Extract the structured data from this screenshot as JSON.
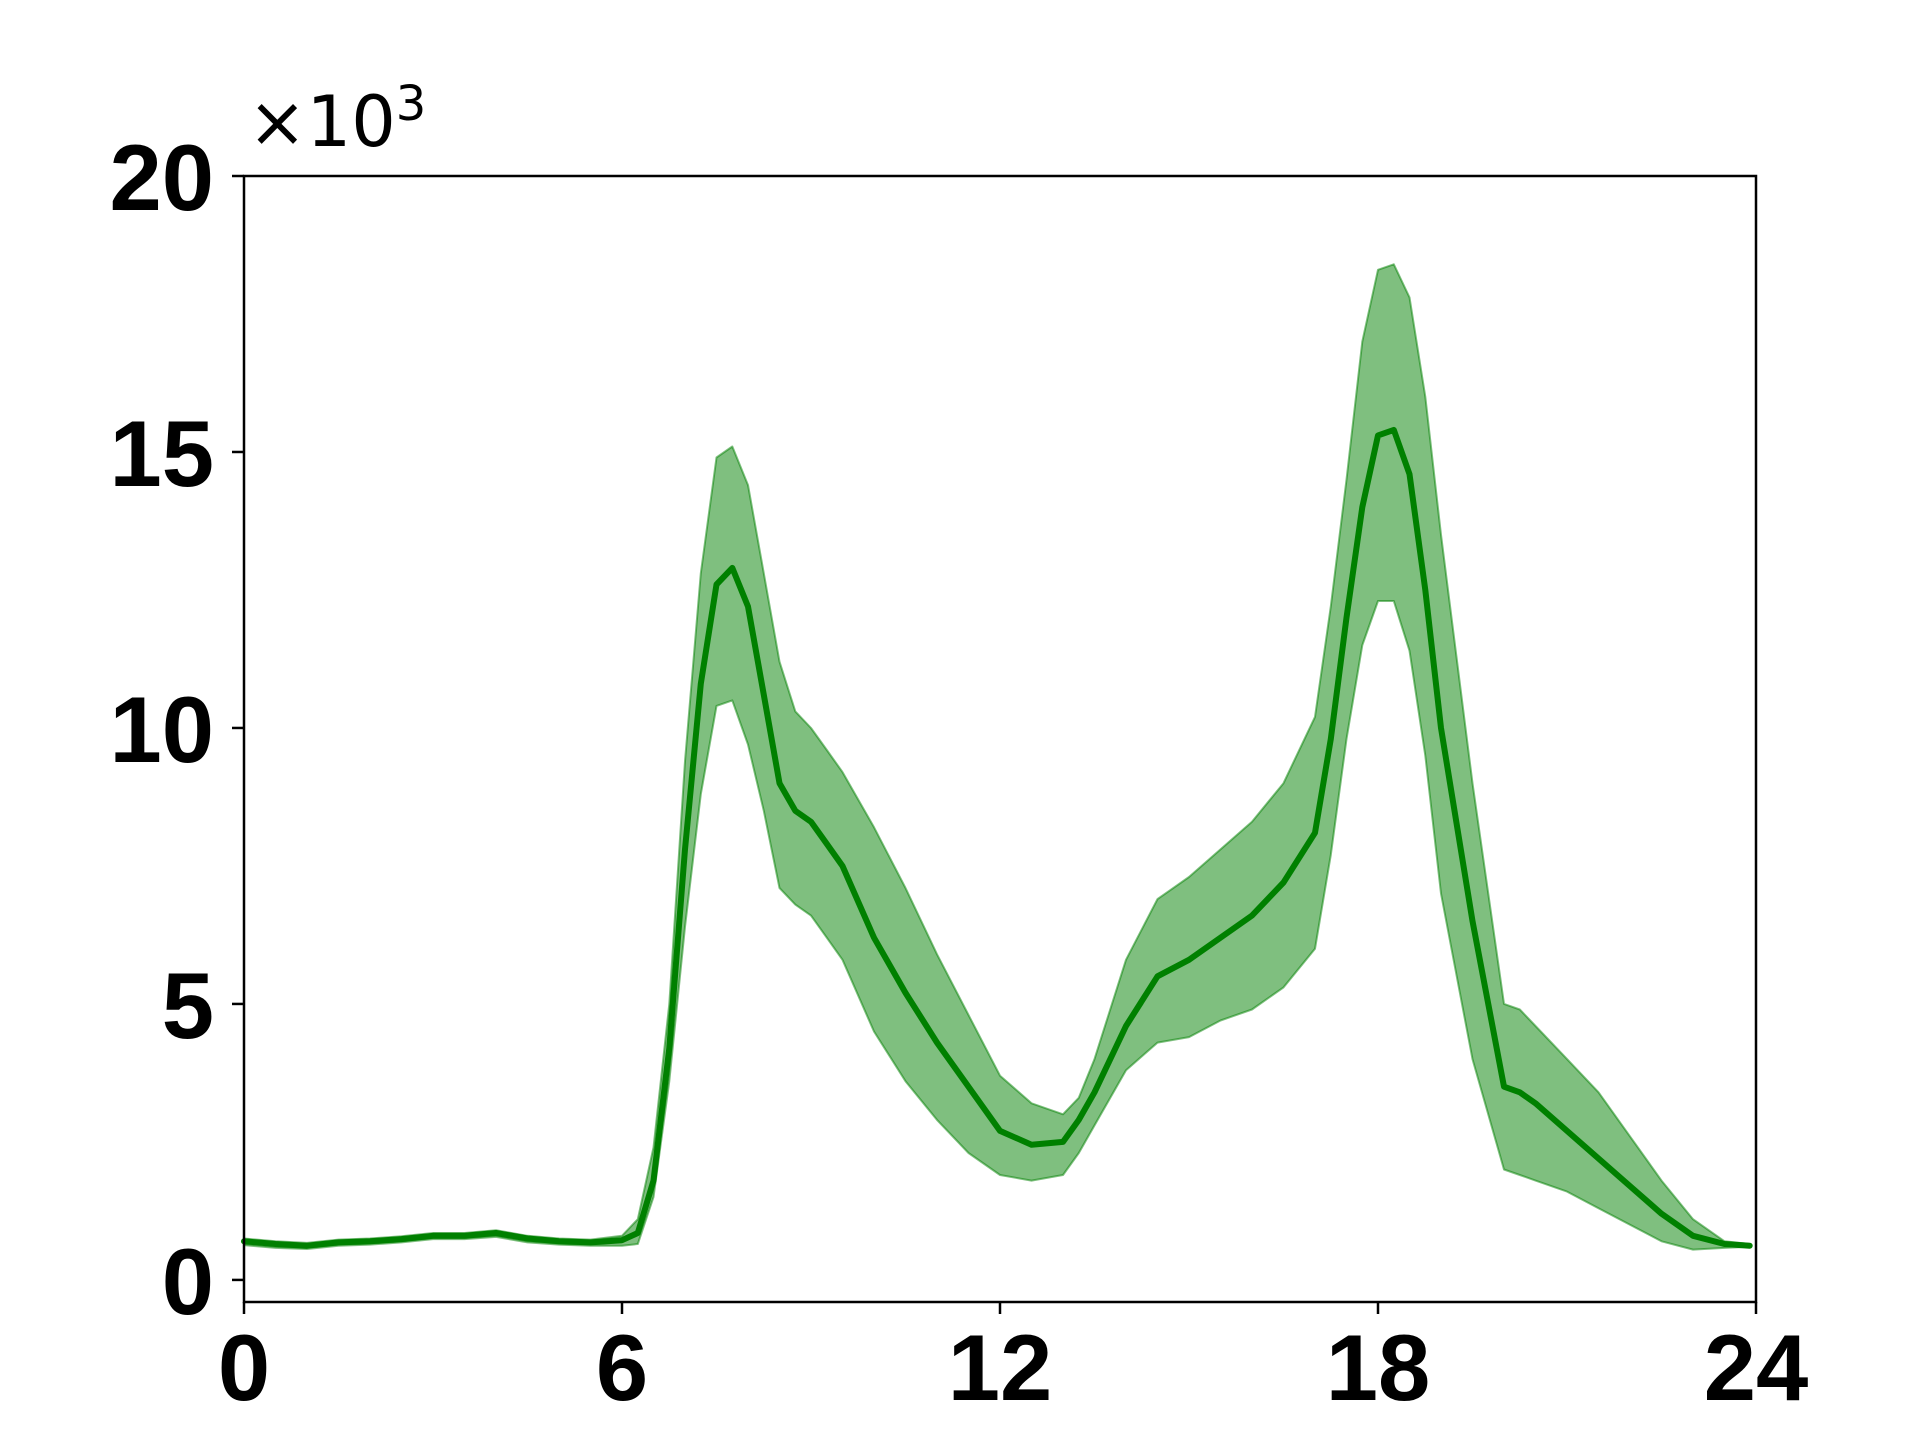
{
  "chart_data": {
    "type": "line",
    "title": "",
    "xlabel": "",
    "ylabel": "",
    "y_multiplier_label": "×10",
    "y_multiplier_exponent": "3",
    "xlim": [
      0,
      24
    ],
    "ylim": [
      -0.4,
      20
    ],
    "x_ticks": [
      0,
      6,
      12,
      18,
      24
    ],
    "x_tick_labels": [
      "0",
      "6",
      "12",
      "18",
      "24"
    ],
    "y_ticks": [
      0,
      5,
      10,
      15,
      20
    ],
    "y_tick_labels": [
      "0",
      "5",
      "10",
      "15",
      "20"
    ],
    "grid": false,
    "legend": "none",
    "colors": {
      "line": "#008000",
      "band": "#008000"
    },
    "series": [
      {
        "x": [
          0,
          0.5,
          1,
          1.5,
          2,
          2.5,
          3,
          3.5,
          4,
          4.5,
          5,
          5.5,
          6,
          6.25,
          6.5,
          6.75,
          7,
          7.25,
          7.5,
          7.75,
          8,
          8.25,
          8.5,
          8.75,
          9,
          9.25,
          9.5,
          10,
          10.5,
          11,
          11.5,
          12,
          12.5,
          13,
          13.25,
          13.5,
          14,
          14.5,
          15,
          15.5,
          16,
          16.5,
          17,
          17.25,
          17.5,
          17.75,
          18,
          18.25,
          18.5,
          18.75,
          19,
          19.5,
          20,
          20.25,
          20.5,
          21,
          21.5,
          22,
          22.5,
          23,
          23.5,
          23.9
        ],
        "mean": [
          0.7,
          0.65,
          0.62,
          0.68,
          0.7,
          0.74,
          0.8,
          0.8,
          0.85,
          0.75,
          0.7,
          0.68,
          0.72,
          0.85,
          1.8,
          4.2,
          7.8,
          10.8,
          12.6,
          12.9,
          12.2,
          10.6,
          9.0,
          8.5,
          8.3,
          7.9,
          7.5,
          6.2,
          5.2,
          4.3,
          3.5,
          2.7,
          2.45,
          2.5,
          2.9,
          3.4,
          4.6,
          5.5,
          5.8,
          6.2,
          6.6,
          7.2,
          8.1,
          9.8,
          12.0,
          14.0,
          15.3,
          15.4,
          14.6,
          12.5,
          10.0,
          6.5,
          3.5,
          3.4,
          3.2,
          2.7,
          2.2,
          1.7,
          1.2,
          0.8,
          0.65,
          0.62
        ],
        "upper": [
          0.75,
          0.7,
          0.67,
          0.73,
          0.75,
          0.79,
          0.85,
          0.85,
          0.9,
          0.8,
          0.75,
          0.73,
          0.8,
          1.1,
          2.4,
          5.0,
          9.4,
          12.8,
          14.9,
          15.1,
          14.4,
          12.8,
          11.2,
          10.3,
          10.0,
          9.6,
          9.2,
          8.2,
          7.1,
          5.9,
          4.8,
          3.7,
          3.2,
          3.0,
          3.3,
          4.0,
          5.8,
          6.9,
          7.3,
          7.8,
          8.3,
          9.0,
          10.2,
          12.2,
          14.5,
          17.0,
          18.3,
          18.4,
          17.8,
          16.0,
          13.5,
          9.0,
          5.0,
          4.9,
          4.6,
          4.0,
          3.4,
          2.6,
          1.8,
          1.1,
          0.7,
          0.65
        ],
        "lower": [
          0.63,
          0.58,
          0.56,
          0.62,
          0.64,
          0.68,
          0.74,
          0.74,
          0.78,
          0.68,
          0.64,
          0.62,
          0.62,
          0.65,
          1.5,
          3.6,
          6.4,
          8.8,
          10.4,
          10.5,
          9.7,
          8.5,
          7.1,
          6.8,
          6.6,
          6.2,
          5.8,
          4.5,
          3.6,
          2.9,
          2.3,
          1.9,
          1.8,
          1.9,
          2.3,
          2.8,
          3.8,
          4.3,
          4.4,
          4.7,
          4.9,
          5.3,
          6.0,
          7.7,
          9.8,
          11.5,
          12.3,
          12.3,
          11.4,
          9.5,
          7.0,
          4.0,
          2.0,
          1.9,
          1.8,
          1.6,
          1.3,
          1.0,
          0.7,
          0.55,
          0.58,
          0.6
        ]
      }
    ]
  }
}
